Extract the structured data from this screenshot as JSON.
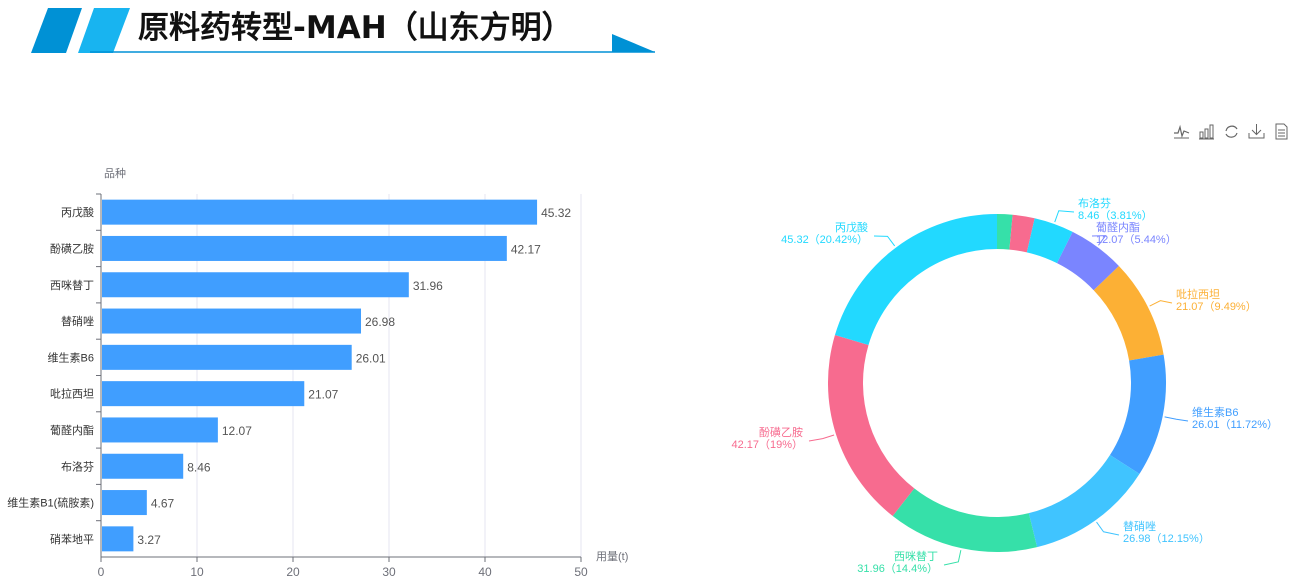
{
  "header": {
    "title": "原料药转型-MAH（山东方明）"
  },
  "toolbar": {
    "icons": [
      "line-chart-icon",
      "bar-chart-icon",
      "restore-icon",
      "download-icon",
      "data-view-icon"
    ]
  },
  "chart_data": [
    {
      "type": "bar",
      "orientation": "horizontal",
      "ylabel": "品种",
      "xlabel": "用量(t)",
      "xlim": [
        0,
        50
      ],
      "xticks": [
        0,
        10,
        20,
        30,
        40,
        50
      ],
      "categories": [
        "丙戊酸",
        "酚磺乙胺",
        "西咪替丁",
        "替硝唑",
        "维生素B6",
        "吡拉西坦",
        "葡醛内酯",
        "布洛芬",
        "维生素B1(硫胺素)",
        "硝苯地平"
      ],
      "values": [
        45.32,
        42.17,
        31.96,
        26.98,
        26.01,
        21.07,
        12.07,
        8.46,
        4.67,
        3.27
      ],
      "color": "#409eff",
      "grid": "vertical"
    },
    {
      "type": "pie",
      "variant": "donut",
      "slices": [
        {
          "name": "硝苯地平",
          "value": 3.27,
          "color": "#36e0a9",
          "label": ""
        },
        {
          "name": "维生素B1(硫胺素)",
          "value": 4.67,
          "color": "#f76b8f",
          "label": ""
        },
        {
          "name": "布洛芬",
          "value": 8.46,
          "color": "#22d9ff",
          "label": "8.46（3.81%）"
        },
        {
          "name": "葡醛内酯",
          "value": 12.07,
          "color": "#7a85ff",
          "label": "12.07（5.44%）"
        },
        {
          "name": "吡拉西坦",
          "value": 21.07,
          "color": "#fcb035",
          "label": "21.07（9.49%）"
        },
        {
          "name": "维生素B6",
          "value": 26.01,
          "color": "#409eff",
          "label": "26.01（11.72%）"
        },
        {
          "name": "替硝唑",
          "value": 26.98,
          "color": "#40c4ff",
          "label": "26.98（12.15%）"
        },
        {
          "name": "西咪替丁",
          "value": 31.96,
          "color": "#36e0a9",
          "label": "31.96（14.4%）"
        },
        {
          "name": "酚磺乙胺",
          "value": 42.17,
          "color": "#f76b8f",
          "label": "42.17（19%）"
        },
        {
          "name": "丙戊酸",
          "value": 45.32,
          "color": "#22d9ff",
          "label": "45.32（20.42%）"
        }
      ]
    }
  ]
}
